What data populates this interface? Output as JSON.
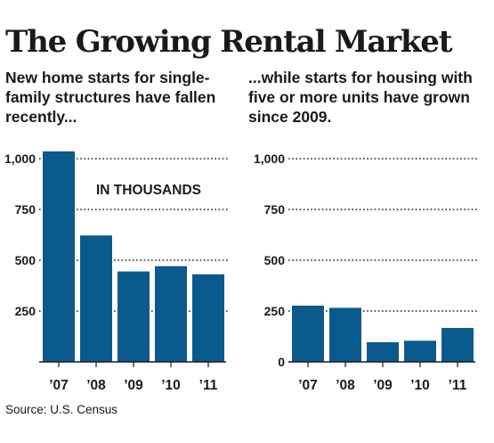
{
  "title": "The Growing Rental Market",
  "source": "Source: U.S. Census",
  "bar_color": "#0b5a8e",
  "chart_data": [
    {
      "type": "bar",
      "subtitle": "New home starts for single-family structures have fallen recently...",
      "annotation": "IN THOUSANDS",
      "categories": [
        "’07",
        "’08",
        "’09",
        "’10",
        "’11"
      ],
      "values": [
        1036,
        622,
        445,
        471,
        431
      ],
      "ylim": [
        0,
        1000
      ],
      "yticks": [
        250,
        500,
        750,
        1000
      ],
      "ytick_labels": [
        "250",
        "500",
        "750",
        "1,000"
      ],
      "grid": true
    },
    {
      "type": "bar",
      "subtitle": "...while starts for housing with five or more units have grown since 2009.",
      "categories": [
        "’07",
        "’08",
        "’09",
        "’10",
        "’11"
      ],
      "values": [
        277,
        266,
        97,
        104,
        167
      ],
      "ylim": [
        0,
        1000
      ],
      "yticks": [
        0,
        250,
        500,
        750,
        1000
      ],
      "ytick_labels": [
        "0",
        "250",
        "500",
        "750",
        "1,000"
      ],
      "grid": true
    }
  ]
}
